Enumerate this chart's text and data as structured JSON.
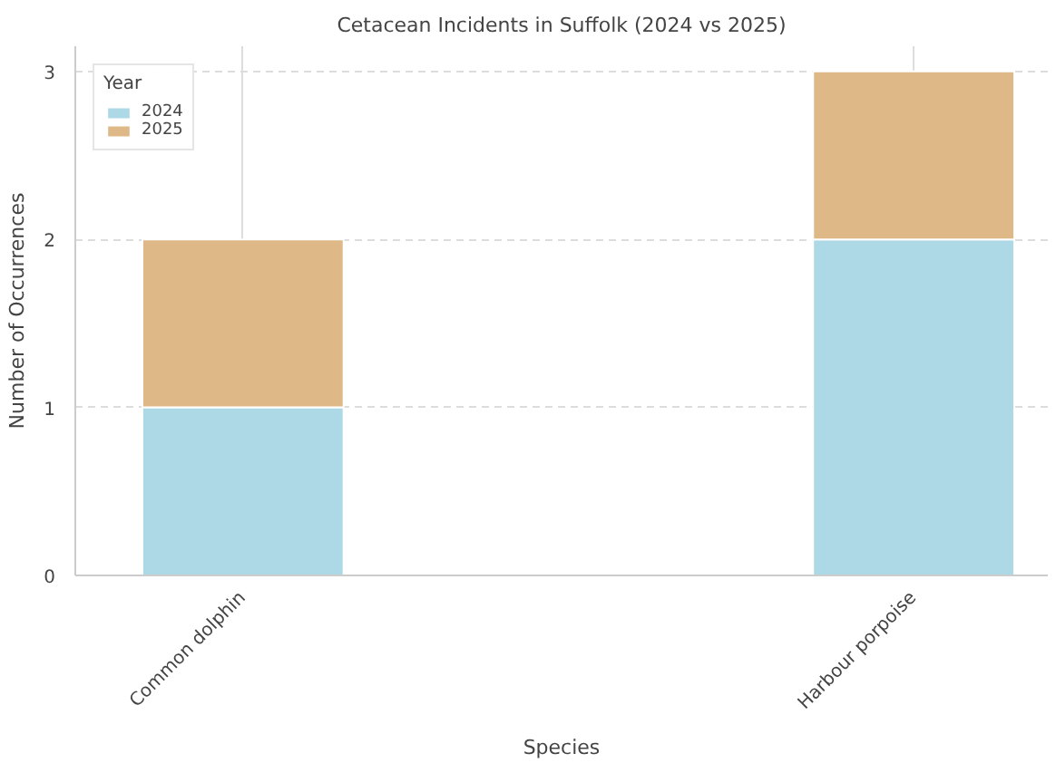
{
  "chart_data": {
    "type": "bar",
    "title": "Cetacean Incidents in Suffolk (2024 vs 2025)",
    "xlabel": "Species",
    "ylabel": "Number of Occurrences",
    "legend_title": "Year",
    "categories": [
      "Common dolphin",
      "Harbour porpoise"
    ],
    "series": [
      {
        "name": "2024",
        "color": "#add8e6",
        "values": [
          1,
          2
        ]
      },
      {
        "name": "2025",
        "color": "#deb887",
        "values": [
          1,
          1
        ]
      }
    ],
    "stacked": true,
    "ylim": [
      0,
      3.15
    ],
    "yticks": [
      0,
      1,
      2,
      3
    ],
    "grid": true,
    "legend": "top left"
  }
}
